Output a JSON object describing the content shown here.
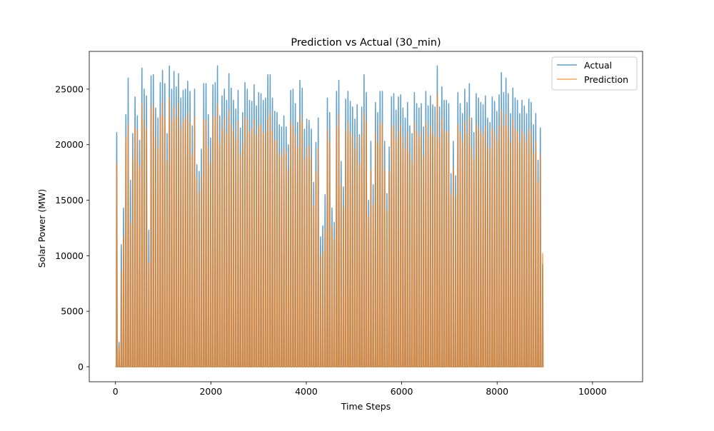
{
  "chart_data": {
    "type": "line",
    "title": "Prediction vs Actual (30_min)",
    "xlabel": "Time Steps",
    "ylabel": "Solar Power (MW)",
    "xlim": [
      -550,
      11050
    ],
    "ylim": [
      -1350,
      28400
    ],
    "xticks": [
      0,
      2000,
      4000,
      6000,
      8000,
      10000
    ],
    "yticks": [
      0,
      5000,
      10000,
      15000,
      20000,
      25000
    ],
    "grid": false,
    "legend_position": "top-right",
    "period": 48,
    "series": [
      {
        "name": "Actual",
        "color": "#1f77b4",
        "daily_peaks": [
          21100,
          2200,
          11000,
          14300,
          22700,
          26000,
          16800,
          21000,
          24300,
          22600,
          20400,
          26900,
          25000,
          24400,
          12300,
          26200,
          26300,
          23300,
          22400,
          25600,
          26700,
          25500,
          21000,
          27100,
          25000,
          26600,
          25200,
          26400,
          24200,
          24900,
          25000,
          25700,
          24800,
          21700,
          25000,
          18200,
          17600,
          19600,
          25500,
          25500,
          22700,
          20600,
          25400,
          25600,
          27100,
          22600,
          24400,
          25000,
          24000,
          26400,
          25100,
          24000,
          23200,
          24900,
          21500,
          22900,
          25600,
          25000,
          24000,
          23900,
          25400,
          23500,
          24700,
          24600,
          24000,
          24200,
          26300,
          26300,
          24200,
          23000,
          22900,
          21800,
          21600,
          22600,
          21600,
          20000,
          24900,
          25000,
          23700,
          22000,
          25800,
          25100,
          21400,
          22300,
          22200,
          21400,
          16600,
          20200,
          22400,
          11700,
          12700,
          15500,
          24200,
          22900,
          14300,
          13000,
          24800,
          25800,
          18500,
          16200,
          24100,
          24800,
          23900,
          23400,
          22300,
          23600,
          20900,
          23400,
          26300,
          24700,
          15000,
          20300,
          16400,
          23800,
          22900,
          24800,
          24800,
          20300,
          15600,
          19800,
          24300,
          24600,
          23100,
          24300,
          24500,
          23300,
          22400,
          23800,
          21700,
          21000,
          24700,
          23700,
          23300,
          23700,
          21600,
          24800,
          23500,
          24400,
          23600,
          23400,
          27100,
          23400,
          25200,
          24000,
          24000,
          23700,
          17400,
          20300,
          17200,
          24700,
          23700,
          22800,
          25000,
          23800,
          25500,
          22400,
          21100,
          24600,
          24200,
          23800,
          23600,
          24400,
          22400,
          22000,
          24300,
          23900,
          23000,
          24500,
          26500,
          24700,
          26000,
          24600,
          22800,
          25100,
          24200,
          24000,
          22800,
          24000,
          23500,
          22800,
          24100,
          23800,
          21800,
          22800,
          18600,
          21500,
          9200
        ],
        "night_value": 0
      },
      {
        "name": "Prediction",
        "color": "#ff7f0e",
        "daily_peaks": [
          18300,
          1800,
          8600,
          11700,
          20600,
          21800,
          13000,
          18700,
          21500,
          21400,
          18100,
          23700,
          22200,
          21500,
          9400,
          23300,
          23600,
          20700,
          19700,
          22600,
          23800,
          22500,
          18500,
          24200,
          22200,
          23400,
          22400,
          23700,
          21500,
          22200,
          22400,
          22900,
          22000,
          19100,
          22500,
          17000,
          15700,
          17200,
          22300,
          22100,
          19800,
          18400,
          22500,
          22500,
          23600,
          20200,
          21500,
          22400,
          21000,
          23100,
          21800,
          21300,
          20500,
          22100,
          19100,
          20100,
          22500,
          22200,
          21100,
          21400,
          22300,
          20900,
          21700,
          21800,
          21100,
          21100,
          22400,
          22900,
          21300,
          20400,
          20400,
          19200,
          19000,
          19700,
          19300,
          17700,
          22100,
          21700,
          20900,
          19700,
          22700,
          22100,
          18700,
          19700,
          19900,
          18800,
          14500,
          17500,
          19700,
          10000,
          10400,
          12400,
          21400,
          20300,
          12600,
          11500,
          21600,
          22700,
          16400,
          14400,
          21200,
          22000,
          21100,
          20800,
          19600,
          20700,
          18300,
          20800,
          22800,
          22100,
          13600,
          17800,
          14600,
          21100,
          20200,
          22000,
          21800,
          17700,
          14100,
          17600,
          21500,
          21800,
          20500,
          21200,
          21800,
          20700,
          19700,
          21100,
          19300,
          18500,
          22000,
          21200,
          20700,
          21100,
          19000,
          22000,
          20700,
          21700,
          21100,
          20700,
          24500,
          20600,
          22400,
          21300,
          21200,
          21100,
          15600,
          17900,
          15400,
          21800,
          21100,
          20300,
          22100,
          21000,
          22500,
          19800,
          18700,
          21800,
          21500,
          21200,
          20900,
          21600,
          19900,
          19600,
          21500,
          21100,
          20400,
          21700,
          23100,
          21700,
          22800,
          21600,
          20300,
          22300,
          21400,
          21200,
          20300,
          21200,
          20900,
          20300,
          21400,
          21100,
          19300,
          20300,
          16600,
          19100,
          10200
        ],
        "night_value": 0
      }
    ]
  }
}
